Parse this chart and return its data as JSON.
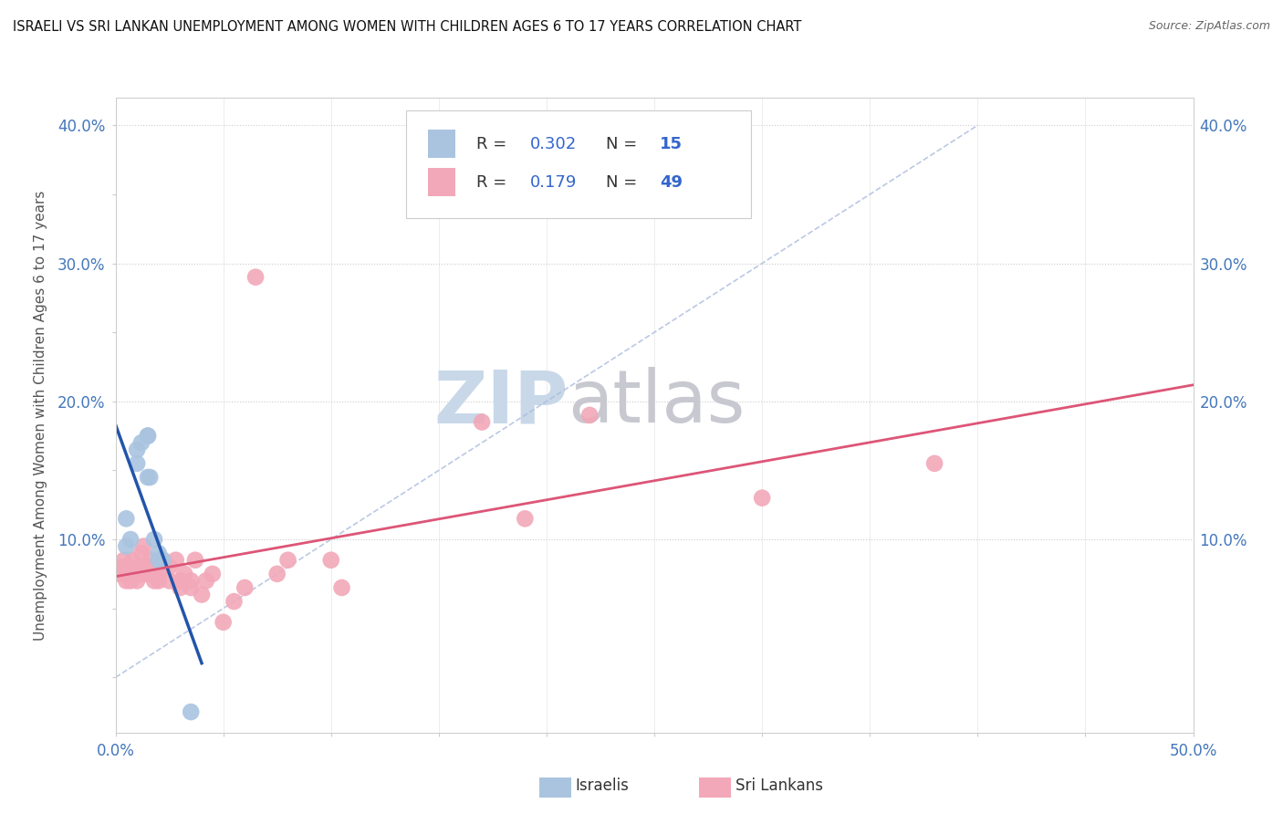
{
  "title": "ISRAELI VS SRI LANKAN UNEMPLOYMENT AMONG WOMEN WITH CHILDREN AGES 6 TO 17 YEARS CORRELATION CHART",
  "source": "Source: ZipAtlas.com",
  "ylabel": "Unemployment Among Women with Children Ages 6 to 17 years",
  "xlim": [
    0.0,
    0.5
  ],
  "ylim": [
    -0.04,
    0.42
  ],
  "xtick_positions": [
    0.0,
    0.05,
    0.1,
    0.15,
    0.2,
    0.25,
    0.3,
    0.35,
    0.4,
    0.45,
    0.5
  ],
  "xtick_labels": [
    "0.0%",
    "",
    "",
    "",
    "",
    "",
    "",
    "",
    "",
    "",
    "50.0%"
  ],
  "ytick_positions": [
    0.0,
    0.05,
    0.1,
    0.15,
    0.2,
    0.25,
    0.3,
    0.35,
    0.4
  ],
  "ytick_labels": [
    "",
    "",
    "10.0%",
    "",
    "20.0%",
    "",
    "30.0%",
    "",
    "40.0%"
  ],
  "israeli_R": 0.302,
  "israeli_N": 15,
  "srilankan_R": 0.179,
  "srilankan_N": 49,
  "israeli_color": "#aac4e0",
  "srilankan_color": "#f2a8b8",
  "israeli_line_color": "#2255aa",
  "srilankan_line_color": "#dd5577",
  "watermark_zip": "ZIP",
  "watermark_atlas": "atlas",
  "watermark_color_zip": "#c8d8e8",
  "watermark_color_atlas": "#c8c8d0",
  "israeli_x": [
    0.005,
    0.005,
    0.007,
    0.01,
    0.01,
    0.012,
    0.015,
    0.015,
    0.015,
    0.016,
    0.018,
    0.02,
    0.02,
    0.022,
    0.035
  ],
  "israeli_y": [
    0.095,
    0.115,
    0.1,
    0.155,
    0.165,
    0.17,
    0.175,
    0.175,
    0.145,
    0.145,
    0.1,
    0.09,
    0.085,
    0.085,
    -0.025
  ],
  "srilankan_x": [
    0.002,
    0.003,
    0.004,
    0.005,
    0.005,
    0.006,
    0.007,
    0.008,
    0.008,
    0.01,
    0.01,
    0.01,
    0.012,
    0.012,
    0.013,
    0.015,
    0.015,
    0.016,
    0.018,
    0.018,
    0.02,
    0.02,
    0.022,
    0.022,
    0.025,
    0.025,
    0.028,
    0.03,
    0.03,
    0.032,
    0.035,
    0.035,
    0.037,
    0.04,
    0.042,
    0.045,
    0.05,
    0.055,
    0.06,
    0.065,
    0.075,
    0.08,
    0.1,
    0.105,
    0.17,
    0.19,
    0.22,
    0.3,
    0.38
  ],
  "srilankan_y": [
    0.075,
    0.08,
    0.085,
    0.07,
    0.075,
    0.08,
    0.07,
    0.075,
    0.085,
    0.07,
    0.075,
    0.08,
    0.075,
    0.09,
    0.095,
    0.075,
    0.08,
    0.085,
    0.07,
    0.08,
    0.07,
    0.075,
    0.08,
    0.085,
    0.07,
    0.08,
    0.085,
    0.065,
    0.07,
    0.075,
    0.065,
    0.07,
    0.085,
    0.06,
    0.07,
    0.075,
    0.04,
    0.055,
    0.065,
    0.29,
    0.075,
    0.085,
    0.085,
    0.065,
    0.185,
    0.115,
    0.19,
    0.13,
    0.155
  ]
}
